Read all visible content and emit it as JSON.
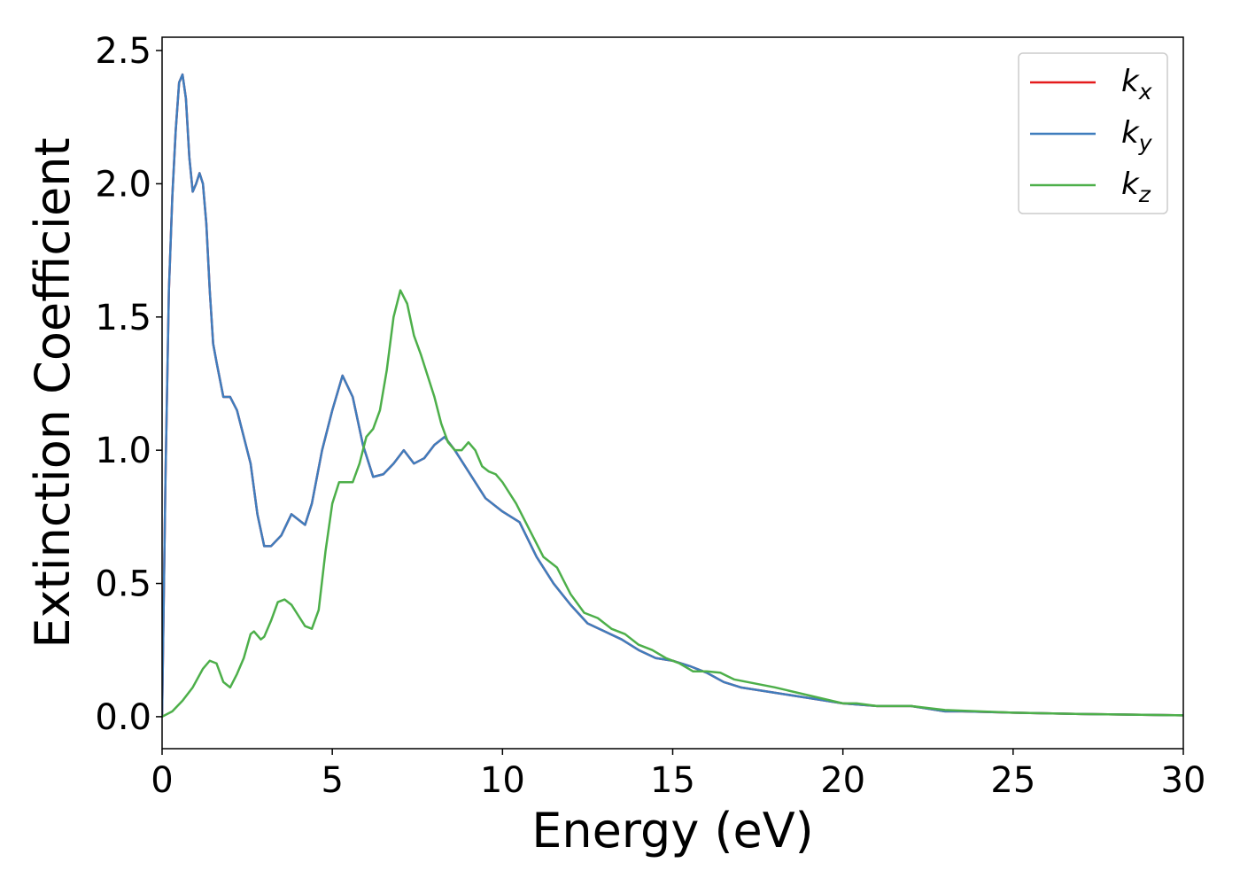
{
  "chart_data": {
    "type": "line",
    "xlabel": "Energy (eV)",
    "ylabel": "Extinction Coefficient",
    "xlim": [
      0,
      30
    ],
    "ylim": [
      -0.12,
      2.55
    ],
    "xticks": [
      0,
      5,
      10,
      15,
      20,
      25,
      30
    ],
    "yticks": [
      0.0,
      0.5,
      1.0,
      1.5,
      2.0,
      2.5
    ],
    "xtick_labels": [
      "0",
      "5",
      "10",
      "15",
      "20",
      "25",
      "30"
    ],
    "ytick_labels": [
      "0.0",
      "0.5",
      "1.0",
      "1.5",
      "2.0",
      "2.5"
    ],
    "grid": false,
    "legend_position": "top-right",
    "series": [
      {
        "name": "x",
        "color": "#e41a1c",
        "x": [
          0,
          0.1,
          0.2,
          0.3,
          0.4,
          0.5,
          0.6,
          0.7,
          0.8,
          0.9,
          1.0,
          1.1,
          1.2,
          1.3,
          1.4,
          1.5,
          1.6,
          1.8,
          2.0,
          2.2,
          2.4,
          2.6,
          2.8,
          3.0,
          3.2,
          3.5,
          3.8,
          4.0,
          4.2,
          4.4,
          4.7,
          5.0,
          5.3,
          5.6,
          5.9,
          6.2,
          6.5,
          6.8,
          7.1,
          7.4,
          7.7,
          8.0,
          8.3,
          8.6,
          9.0,
          9.5,
          10.0,
          10.5,
          11.0,
          11.5,
          12.0,
          12.5,
          13.0,
          13.5,
          14.0,
          14.5,
          15.0,
          15.5,
          16.0,
          16.5,
          17.0,
          17.5,
          18.0,
          19.0,
          20.0,
          21.0,
          22.0,
          23.0,
          23.5,
          25.0,
          27.0,
          30.0
        ],
        "y": [
          0.0,
          0.9,
          1.6,
          1.95,
          2.2,
          2.38,
          2.41,
          2.32,
          2.1,
          1.97,
          2.0,
          2.04,
          2.0,
          1.85,
          1.6,
          1.4,
          1.33,
          1.2,
          1.2,
          1.15,
          1.05,
          0.95,
          0.76,
          0.64,
          0.64,
          0.68,
          0.76,
          0.74,
          0.72,
          0.8,
          1.0,
          1.15,
          1.28,
          1.2,
          1.02,
          0.9,
          0.91,
          0.95,
          1.0,
          0.95,
          0.97,
          1.02,
          1.05,
          1.0,
          0.92,
          0.82,
          0.77,
          0.73,
          0.6,
          0.5,
          0.42,
          0.35,
          0.32,
          0.29,
          0.25,
          0.22,
          0.21,
          0.19,
          0.165,
          0.13,
          0.11,
          0.1,
          0.09,
          0.07,
          0.05,
          0.04,
          0.04,
          0.02,
          0.02,
          0.015,
          0.01,
          0.005
        ]
      },
      {
        "name": "y",
        "color": "#3f7dbd",
        "x": [
          0,
          0.1,
          0.2,
          0.3,
          0.4,
          0.5,
          0.6,
          0.7,
          0.8,
          0.9,
          1.0,
          1.1,
          1.2,
          1.3,
          1.4,
          1.5,
          1.6,
          1.8,
          2.0,
          2.2,
          2.4,
          2.6,
          2.8,
          3.0,
          3.2,
          3.5,
          3.8,
          4.0,
          4.2,
          4.4,
          4.7,
          5.0,
          5.3,
          5.6,
          5.9,
          6.2,
          6.5,
          6.8,
          7.1,
          7.4,
          7.7,
          8.0,
          8.3,
          8.6,
          9.0,
          9.5,
          10.0,
          10.5,
          11.0,
          11.5,
          12.0,
          12.5,
          13.0,
          13.5,
          14.0,
          14.5,
          15.0,
          15.5,
          16.0,
          16.5,
          17.0,
          17.5,
          18.0,
          19.0,
          20.0,
          21.0,
          22.0,
          23.0,
          23.5,
          25.0,
          27.0,
          30.0
        ],
        "y": [
          0.0,
          0.9,
          1.6,
          1.95,
          2.2,
          2.38,
          2.41,
          2.32,
          2.1,
          1.97,
          2.0,
          2.04,
          2.0,
          1.85,
          1.6,
          1.4,
          1.33,
          1.2,
          1.2,
          1.15,
          1.05,
          0.95,
          0.76,
          0.64,
          0.64,
          0.68,
          0.76,
          0.74,
          0.72,
          0.8,
          1.0,
          1.15,
          1.28,
          1.2,
          1.02,
          0.9,
          0.91,
          0.95,
          1.0,
          0.95,
          0.97,
          1.02,
          1.05,
          1.0,
          0.92,
          0.82,
          0.77,
          0.73,
          0.6,
          0.5,
          0.42,
          0.35,
          0.32,
          0.29,
          0.25,
          0.22,
          0.21,
          0.19,
          0.165,
          0.13,
          0.11,
          0.1,
          0.09,
          0.07,
          0.05,
          0.04,
          0.04,
          0.02,
          0.02,
          0.015,
          0.01,
          0.005
        ]
      },
      {
        "name": "z",
        "color": "#4daf4a",
        "x": [
          0,
          0.3,
          0.6,
          0.9,
          1.2,
          1.4,
          1.6,
          1.8,
          2.0,
          2.2,
          2.4,
          2.6,
          2.7,
          2.9,
          3.0,
          3.2,
          3.4,
          3.6,
          3.8,
          4.0,
          4.2,
          4.4,
          4.6,
          4.8,
          5.0,
          5.2,
          5.4,
          5.6,
          5.8,
          6.0,
          6.2,
          6.4,
          6.6,
          6.8,
          7.0,
          7.2,
          7.4,
          7.6,
          7.8,
          8.0,
          8.2,
          8.4,
          8.6,
          8.8,
          9.0,
          9.2,
          9.4,
          9.6,
          9.8,
          10.0,
          10.4,
          10.8,
          11.2,
          11.6,
          12.0,
          12.4,
          12.8,
          13.2,
          13.6,
          14.0,
          14.4,
          14.8,
          15.2,
          15.6,
          16.0,
          16.4,
          16.8,
          17.2,
          17.6,
          18.0,
          19.0,
          20.0,
          20.4,
          21.0,
          22.0,
          23.0,
          24.0,
          25.0,
          27.0,
          30.0
        ],
        "y": [
          0.0,
          0.02,
          0.06,
          0.11,
          0.18,
          0.21,
          0.2,
          0.13,
          0.11,
          0.16,
          0.22,
          0.31,
          0.32,
          0.29,
          0.3,
          0.36,
          0.43,
          0.44,
          0.42,
          0.38,
          0.34,
          0.33,
          0.4,
          0.62,
          0.8,
          0.88,
          0.88,
          0.88,
          0.95,
          1.05,
          1.08,
          1.15,
          1.3,
          1.5,
          1.6,
          1.55,
          1.43,
          1.36,
          1.28,
          1.2,
          1.1,
          1.03,
          1.0,
          1.0,
          1.03,
          1.0,
          0.94,
          0.92,
          0.91,
          0.88,
          0.8,
          0.7,
          0.6,
          0.56,
          0.46,
          0.39,
          0.37,
          0.33,
          0.31,
          0.27,
          0.25,
          0.22,
          0.2,
          0.17,
          0.17,
          0.165,
          0.14,
          0.13,
          0.12,
          0.11,
          0.08,
          0.05,
          0.05,
          0.04,
          0.04,
          0.025,
          0.02,
          0.015,
          0.01,
          0.005
        ]
      }
    ]
  }
}
